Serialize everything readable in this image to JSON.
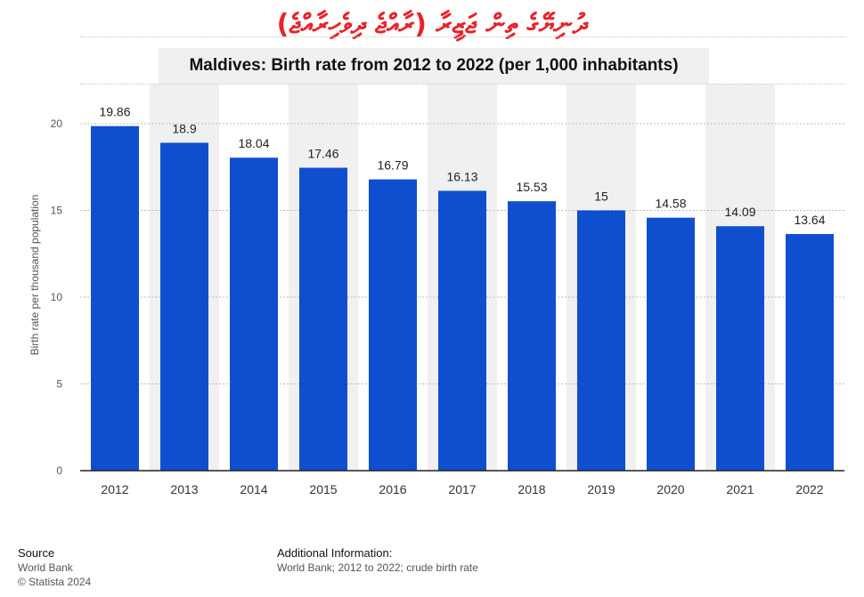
{
  "banner": {
    "text": "ދުނިޔޭގެ ތިން ޖަޒީރާ (ރާއްޖެ ދިވެހިރާއްޖެ)"
  },
  "chart_data": {
    "type": "bar",
    "title": "Maldives: Birth rate from 2012 to 2022 (per 1,000 inhabitants)",
    "ylabel": "Birth rate per thousand population",
    "xlabel": "",
    "categories": [
      "2012",
      "2013",
      "2014",
      "2015",
      "2016",
      "2017",
      "2018",
      "2019",
      "2020",
      "2021",
      "2022"
    ],
    "values": [
      19.86,
      18.9,
      18.04,
      17.46,
      16.79,
      16.13,
      15.53,
      15,
      14.58,
      14.09,
      13.64
    ],
    "value_labels": [
      "19.86",
      "18.9",
      "18.04",
      "17.46",
      "16.79",
      "16.13",
      "15.53",
      "15",
      "14.58",
      "14.09",
      "13.64"
    ],
    "ylim": [
      0,
      20
    ],
    "yticks": [
      0,
      5,
      10,
      15,
      20
    ],
    "grid": true,
    "bar_color": "#0f4fcf",
    "band_color": "#f0f0f0"
  },
  "footer": {
    "source_heading": "Source",
    "source_lines": [
      "World Bank",
      "© Statista 2024"
    ],
    "info_heading": "Additional Information:",
    "info_text": "World Bank; 2012 to 2022; crude birth rate"
  }
}
